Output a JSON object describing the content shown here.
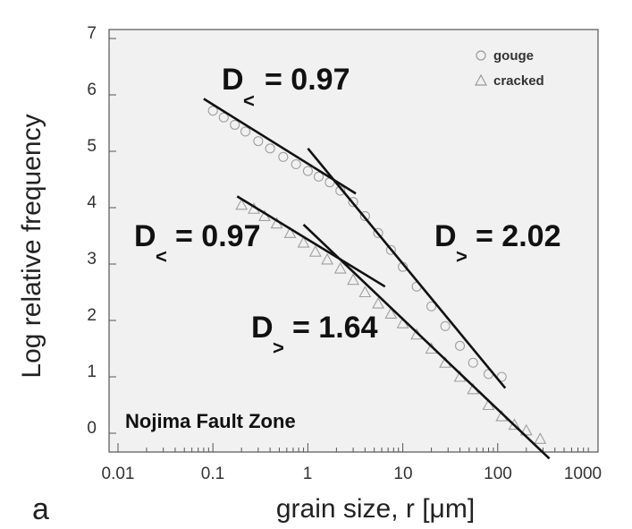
{
  "panel_label": "a",
  "chart_data": {
    "type": "scatter",
    "title": "",
    "xlabel": "grain size,  r [μm]",
    "ylabel": "Log relative frequency",
    "xscale": "log",
    "xlim": [
      0.01,
      1000
    ],
    "ylim": [
      -0.5,
      7
    ],
    "xticks": [
      "0.01",
      "0.1",
      "1",
      "10",
      "100",
      "1000"
    ],
    "yticks": [
      "0",
      "1",
      "2",
      "3",
      "4",
      "5",
      "6",
      "7"
    ],
    "grid": false,
    "legend_position": "top-right",
    "series": [
      {
        "name": "gouge",
        "marker": "circle",
        "points": [
          [
            0.1,
            5.72
          ],
          [
            0.13,
            5.6
          ],
          [
            0.17,
            5.47
          ],
          [
            0.22,
            5.35
          ],
          [
            0.3,
            5.18
          ],
          [
            0.4,
            5.05
          ],
          [
            0.55,
            4.9
          ],
          [
            0.75,
            4.77
          ],
          [
            1.0,
            4.65
          ],
          [
            1.3,
            4.55
          ],
          [
            1.7,
            4.45
          ],
          [
            2.2,
            4.3
          ],
          [
            3.0,
            4.1
          ],
          [
            4.0,
            3.85
          ],
          [
            5.5,
            3.55
          ],
          [
            7.5,
            3.25
          ],
          [
            10,
            2.95
          ],
          [
            14,
            2.6
          ],
          [
            20,
            2.25
          ],
          [
            28,
            1.9
          ],
          [
            40,
            1.55
          ],
          [
            55,
            1.25
          ],
          [
            80,
            1.05
          ],
          [
            110,
            1.0
          ]
        ]
      },
      {
        "name": "cracked",
        "marker": "triangle",
        "points": [
          [
            0.2,
            4.05
          ],
          [
            0.27,
            3.98
          ],
          [
            0.35,
            3.85
          ],
          [
            0.47,
            3.72
          ],
          [
            0.65,
            3.55
          ],
          [
            0.9,
            3.38
          ],
          [
            1.2,
            3.22
          ],
          [
            1.6,
            3.08
          ],
          [
            2.2,
            2.92
          ],
          [
            3.0,
            2.72
          ],
          [
            4.0,
            2.5
          ],
          [
            5.5,
            2.3
          ],
          [
            7.5,
            2.12
          ],
          [
            10,
            1.95
          ],
          [
            14,
            1.75
          ],
          [
            20,
            1.5
          ],
          [
            28,
            1.25
          ],
          [
            40,
            1.0
          ],
          [
            55,
            0.78
          ],
          [
            80,
            0.5
          ],
          [
            110,
            0.3
          ],
          [
            150,
            0.15
          ],
          [
            200,
            0.05
          ],
          [
            280,
            -0.1
          ]
        ]
      }
    ],
    "fit_lines": [
      {
        "from": [
          0.08,
          5.93
        ],
        "to": [
          3.2,
          4.25
        ]
      },
      {
        "from": [
          1.0,
          5.05
        ],
        "to": [
          120,
          0.8
        ]
      },
      {
        "from": [
          0.18,
          4.2
        ],
        "to": [
          6.5,
          2.6
        ]
      },
      {
        "from": [
          0.9,
          3.7
        ],
        "to": [
          350,
          -0.45
        ]
      }
    ],
    "annotations": [
      {
        "main": "D",
        "sub": "<",
        "value": "= 0.97"
      },
      {
        "main": "D",
        "sub": ">",
        "value": "= 2.02"
      },
      {
        "main": "D",
        "sub": "<",
        "value": "= 0.97"
      },
      {
        "main": "D",
        "sub": ">",
        "value": "= 1.64"
      }
    ],
    "inset_label": "Nojima Fault Zone"
  }
}
